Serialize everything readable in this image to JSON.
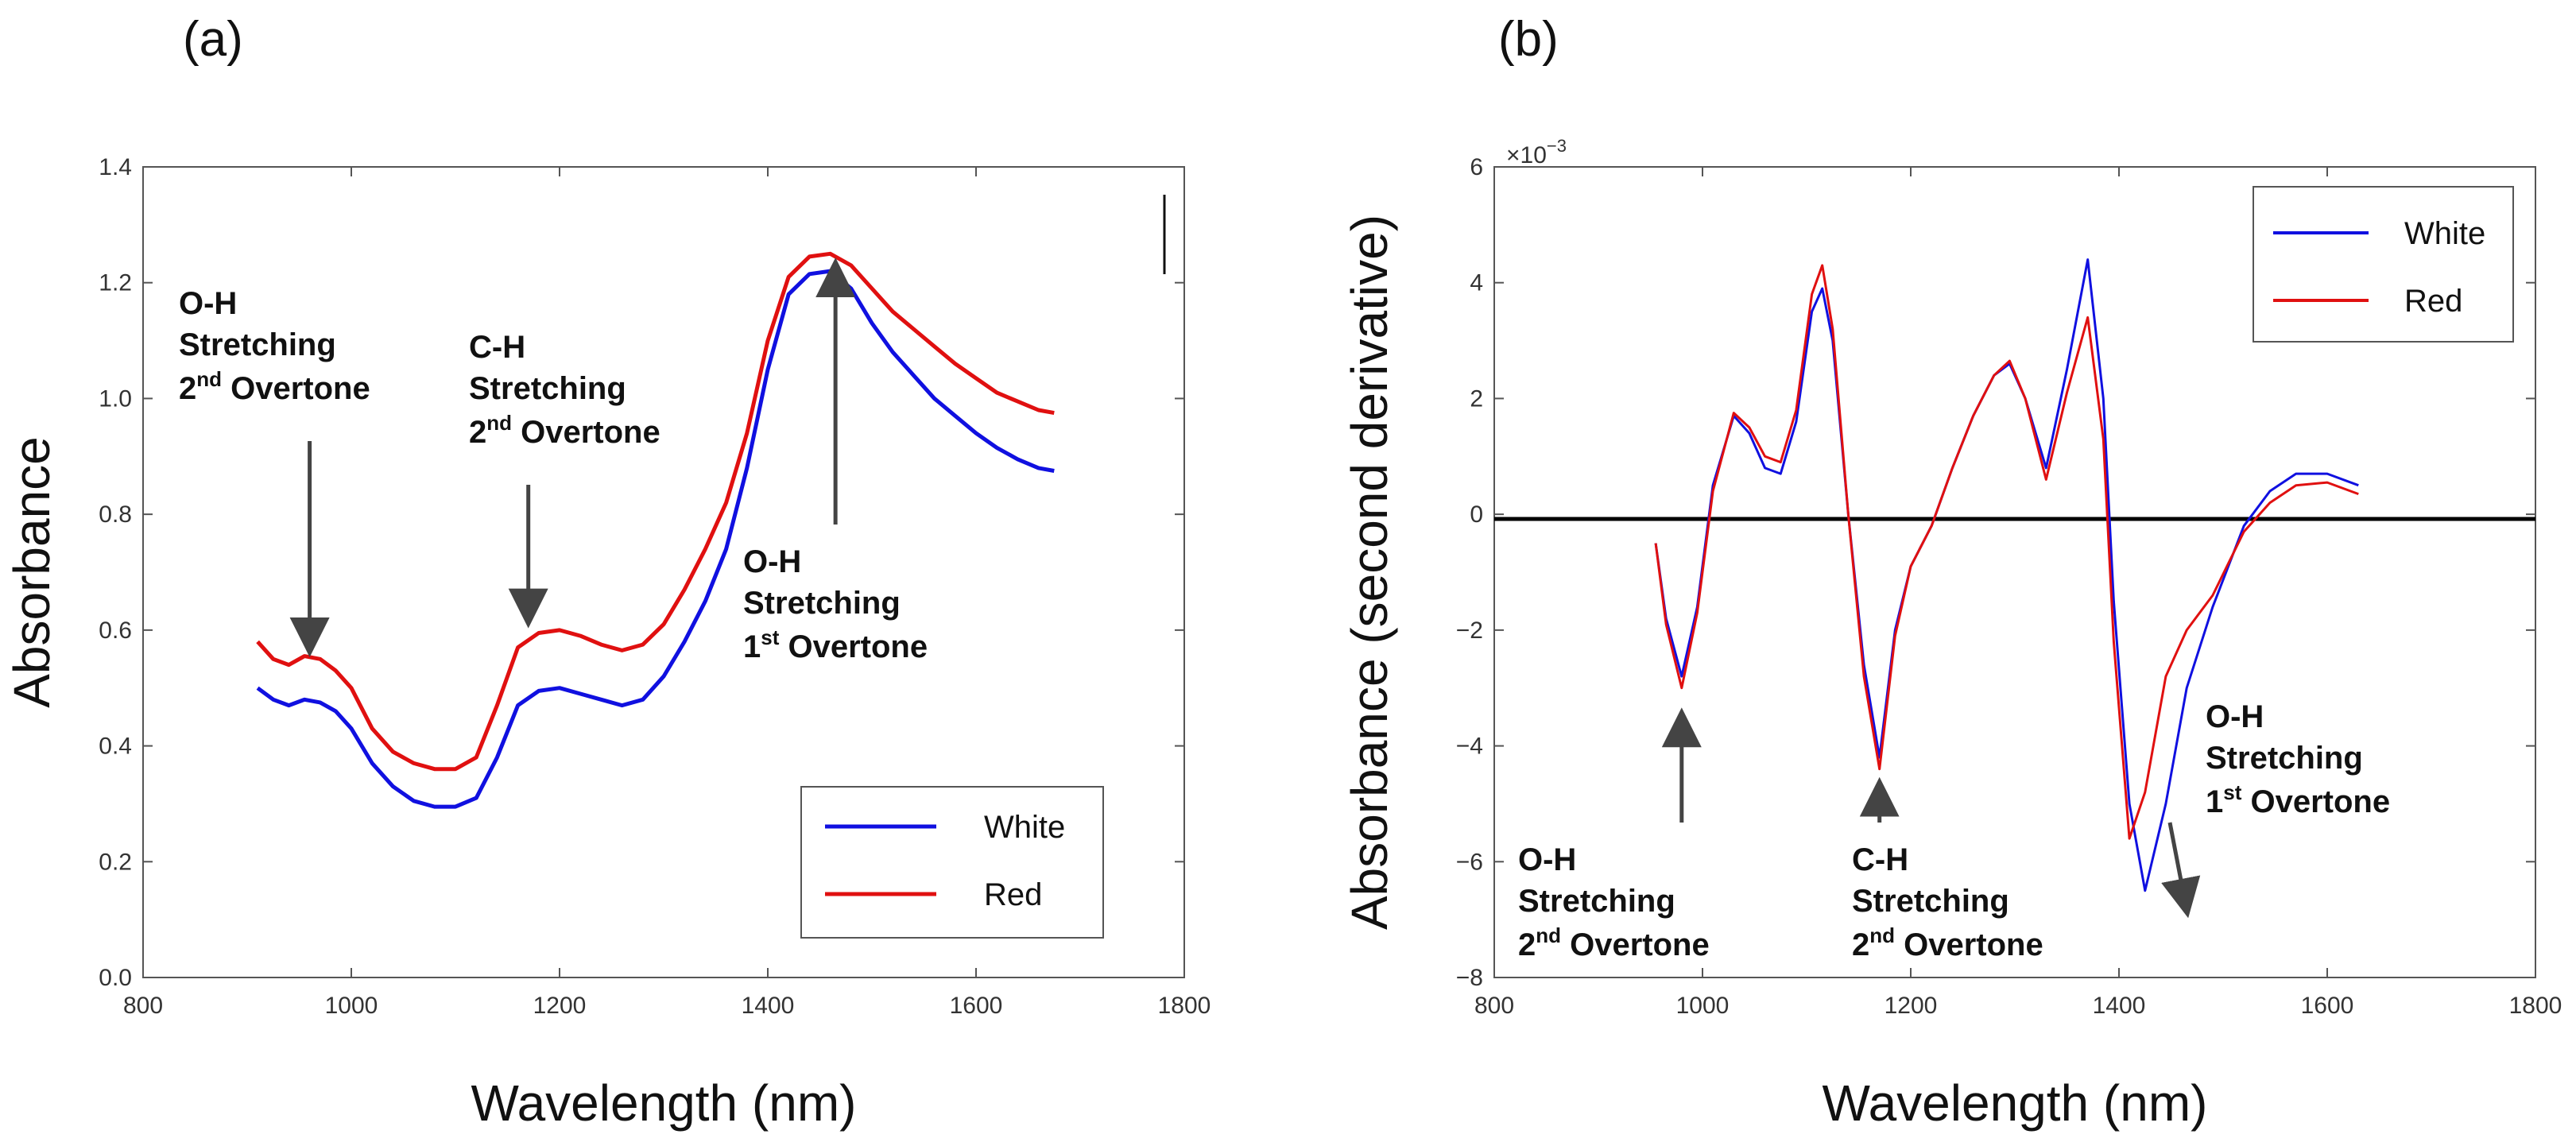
{
  "chart_data": [
    {
      "panel_label": "(a)",
      "type": "line",
      "xlabel": "Wavelength (nm)",
      "ylabel": "Absorbance",
      "xlim": [
        800,
        1800
      ],
      "ylim": [
        0.0,
        1.4
      ],
      "x_ticks": [
        800,
        1000,
        1200,
        1400,
        1600,
        1800
      ],
      "y_ticks": [
        "0.0",
        "0.2",
        "0.4",
        "0.6",
        "0.8",
        "1.0",
        "1.2",
        "1.4"
      ],
      "y_tick_values": [
        0.0,
        0.2,
        0.4,
        0.6,
        0.8,
        1.0,
        1.2,
        1.4
      ],
      "legend_position": "bottom-right",
      "series": [
        {
          "name": "White",
          "color": "#1010e0",
          "x": [
            910,
            925,
            940,
            955,
            970,
            985,
            1000,
            1020,
            1040,
            1060,
            1080,
            1100,
            1120,
            1140,
            1160,
            1180,
            1200,
            1220,
            1240,
            1260,
            1280,
            1300,
            1320,
            1340,
            1360,
            1380,
            1400,
            1420,
            1440,
            1460,
            1480,
            1500,
            1520,
            1540,
            1560,
            1580,
            1600,
            1620,
            1640,
            1660,
            1675
          ],
          "y": [
            0.5,
            0.48,
            0.47,
            0.48,
            0.475,
            0.46,
            0.43,
            0.37,
            0.33,
            0.305,
            0.295,
            0.295,
            0.31,
            0.38,
            0.47,
            0.495,
            0.5,
            0.49,
            0.48,
            0.47,
            0.48,
            0.52,
            0.58,
            0.65,
            0.74,
            0.88,
            1.05,
            1.18,
            1.215,
            1.22,
            1.19,
            1.13,
            1.08,
            1.04,
            1.0,
            0.97,
            0.94,
            0.915,
            0.895,
            0.88,
            0.875
          ]
        },
        {
          "name": "Red",
          "color": "#e01010",
          "x": [
            910,
            925,
            940,
            955,
            970,
            985,
            1000,
            1020,
            1040,
            1060,
            1080,
            1100,
            1120,
            1140,
            1160,
            1180,
            1200,
            1220,
            1240,
            1260,
            1280,
            1300,
            1320,
            1340,
            1360,
            1380,
            1400,
            1420,
            1440,
            1460,
            1480,
            1500,
            1520,
            1540,
            1560,
            1580,
            1600,
            1620,
            1640,
            1660,
            1675
          ],
          "y": [
            0.58,
            0.55,
            0.54,
            0.555,
            0.55,
            0.53,
            0.5,
            0.43,
            0.39,
            0.37,
            0.36,
            0.36,
            0.38,
            0.47,
            0.57,
            0.595,
            0.6,
            0.59,
            0.575,
            0.565,
            0.575,
            0.61,
            0.67,
            0.74,
            0.82,
            0.94,
            1.1,
            1.21,
            1.245,
            1.25,
            1.23,
            1.19,
            1.15,
            1.12,
            1.09,
            1.06,
            1.035,
            1.01,
            0.995,
            0.98,
            0.975
          ]
        }
      ],
      "annotations": [
        {
          "lines": [
            "O-H",
            "Stretching",
            "2nd Overtone"
          ],
          "sup_line": {
            "base": "2",
            "sup": "nd",
            "rest": " Overtone"
          },
          "target_x": 960,
          "target_y": 0.56
        },
        {
          "lines": [
            "C-H",
            "Stretching",
            "2nd Overtone"
          ],
          "sup_line": {
            "base": "2",
            "sup": "nd",
            "rest": " Overtone"
          },
          "target_x": 1170,
          "target_y": 0.61
        },
        {
          "lines": [
            "O-H",
            "Stretching",
            "1st Overtone"
          ],
          "sup_line": {
            "base": "1",
            "sup": "st",
            "rest": " Overtone"
          },
          "target_x": 1465,
          "target_y": 1.22
        }
      ]
    },
    {
      "panel_label": "(b)",
      "type": "line",
      "xlabel": "Wavelength (nm)",
      "ylabel": "Absorbance (second derivative)",
      "y_exponent": "×10",
      "y_exponent_power": "−3",
      "xlim": [
        800,
        1800
      ],
      "ylim": [
        -8,
        6
      ],
      "x_ticks": [
        800,
        1000,
        1200,
        1400,
        1600,
        1800
      ],
      "y_ticks": [
        "−8",
        "−6",
        "−4",
        "−2",
        "0",
        "2",
        "4",
        "6"
      ],
      "y_tick_values": [
        -8,
        -6,
        -4,
        -2,
        0,
        2,
        4,
        6
      ],
      "legend_position": "top-right",
      "series": [
        {
          "name": "White",
          "color": "#1010e0",
          "x": [
            955,
            965,
            980,
            995,
            1010,
            1030,
            1045,
            1060,
            1075,
            1090,
            1105,
            1115,
            1125,
            1140,
            1155,
            1170,
            1185,
            1200,
            1220,
            1240,
            1260,
            1280,
            1295,
            1310,
            1330,
            1350,
            1370,
            1385,
            1395,
            1410,
            1425,
            1445,
            1465,
            1490,
            1520,
            1545,
            1570,
            1600,
            1630
          ],
          "y": [
            -0.5,
            -1.8,
            -2.8,
            -1.6,
            0.5,
            1.7,
            1.4,
            0.8,
            0.7,
            1.6,
            3.5,
            3.9,
            3.0,
            0.0,
            -2.6,
            -4.2,
            -2.0,
            -0.9,
            -0.2,
            0.8,
            1.7,
            2.4,
            2.6,
            2.0,
            0.8,
            2.5,
            4.4,
            2.0,
            -1.5,
            -5.0,
            -6.5,
            -5.0,
            -3.0,
            -1.6,
            -0.2,
            0.4,
            0.7,
            0.7,
            0.5
          ]
        },
        {
          "name": "Red",
          "color": "#e01010",
          "x": [
            955,
            965,
            980,
            995,
            1010,
            1030,
            1045,
            1060,
            1075,
            1090,
            1105,
            1115,
            1125,
            1140,
            1155,
            1170,
            1185,
            1200,
            1220,
            1240,
            1260,
            1280,
            1295,
            1310,
            1330,
            1350,
            1370,
            1385,
            1395,
            1410,
            1425,
            1445,
            1465,
            1490,
            1520,
            1545,
            1570,
            1600,
            1630
          ],
          "y": [
            -0.5,
            -1.9,
            -3.0,
            -1.7,
            0.4,
            1.75,
            1.5,
            1.0,
            0.9,
            1.8,
            3.8,
            4.3,
            3.2,
            0.0,
            -2.8,
            -4.4,
            -2.1,
            -0.9,
            -0.2,
            0.8,
            1.7,
            2.4,
            2.65,
            2.0,
            0.6,
            2.1,
            3.4,
            1.3,
            -2.2,
            -5.6,
            -4.8,
            -2.8,
            -2.0,
            -1.4,
            -0.3,
            0.2,
            0.5,
            0.55,
            0.35
          ]
        }
      ],
      "annotations": [
        {
          "lines": [
            "O-H",
            "Stretching",
            "2nd Overtone"
          ],
          "sup_line": {
            "base": "2",
            "sup": "nd",
            "rest": " Overtone"
          },
          "target_x": 980,
          "target_y": -3.2
        },
        {
          "lines": [
            "C-H",
            "Stretching",
            "2nd Overtone"
          ],
          "sup_line": {
            "base": "2",
            "sup": "nd",
            "rest": " Overtone"
          },
          "target_x": 1170,
          "target_y": -4.4
        },
        {
          "lines": [
            "O-H",
            "Stretching",
            "1st Overtone"
          ],
          "sup_line": {
            "base": "1",
            "sup": "st",
            "rest": " Overtone"
          },
          "target_x": 1440,
          "target_y": -6.5
        }
      ]
    }
  ]
}
